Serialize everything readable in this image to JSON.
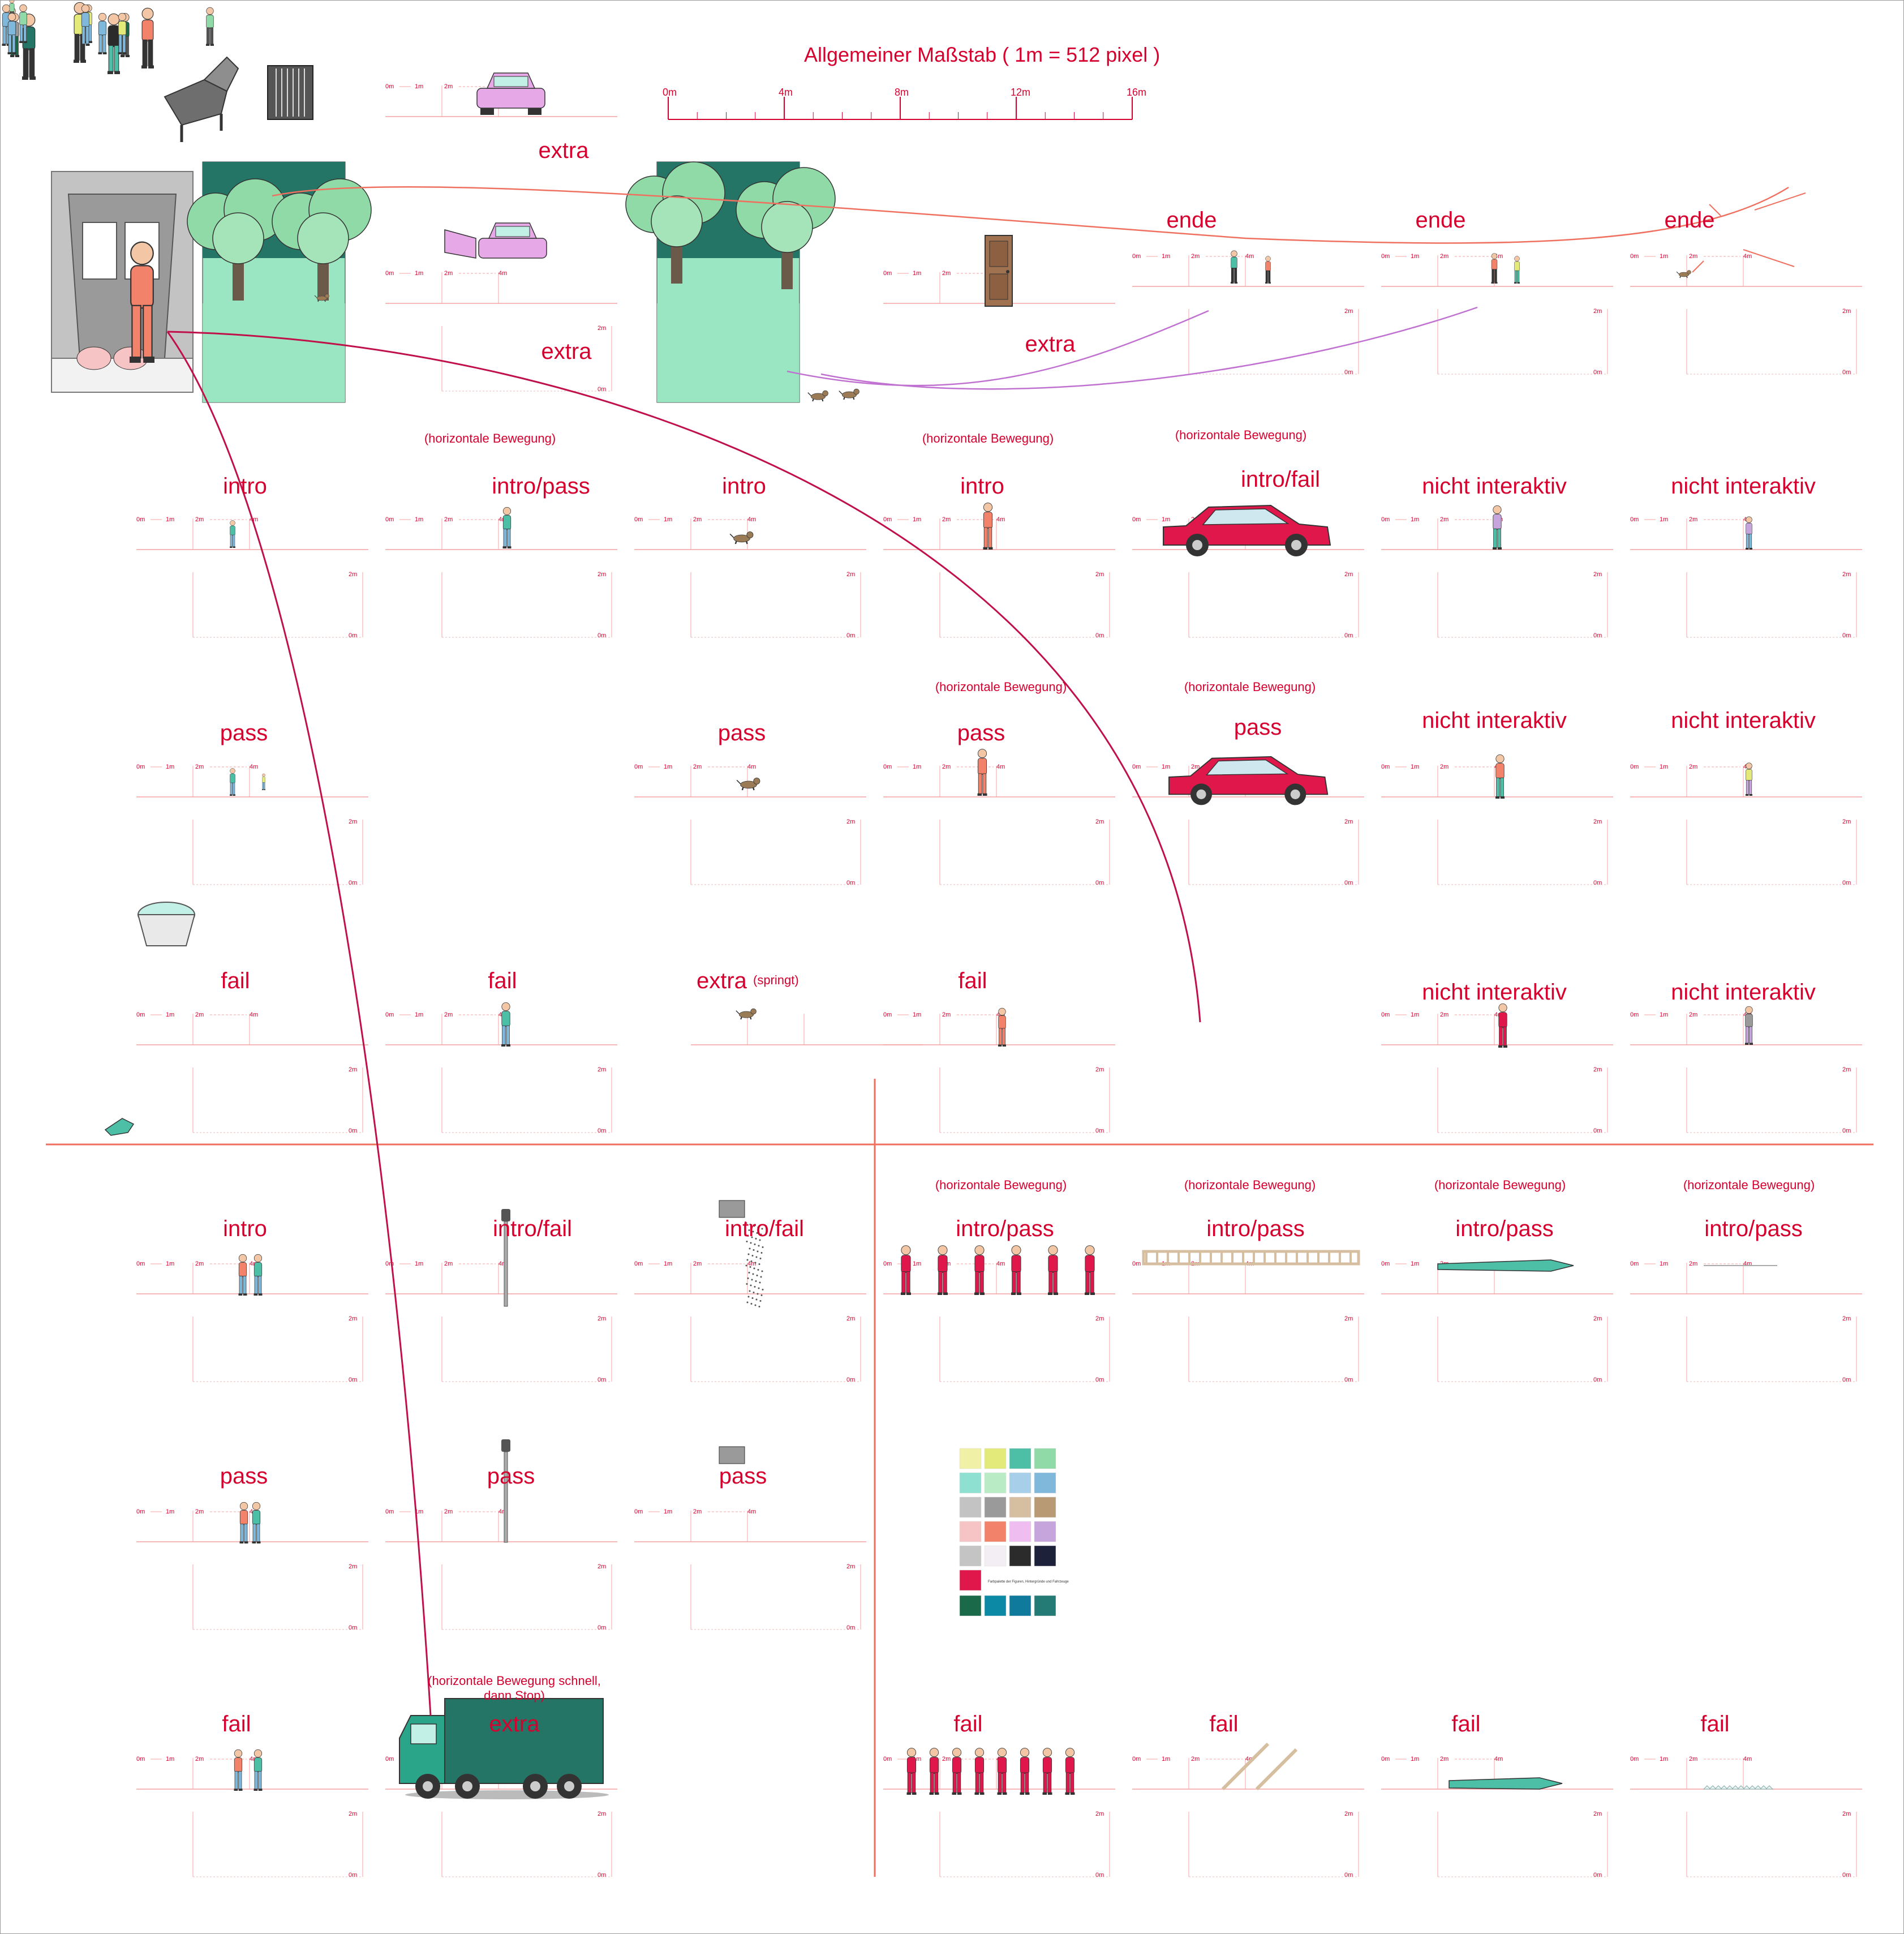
{
  "header": {
    "title": "Allgemeiner Maßstab ( 1m = 512 pixel )",
    "scale_ticks": [
      "0m",
      "4m",
      "8m",
      "12m",
      "16m"
    ]
  },
  "ruler": {
    "h_ticks": [
      "0m",
      "1m",
      "2m",
      "4m"
    ],
    "v_ticks": [
      "2m",
      "0m"
    ]
  },
  "labels": {
    "intro": "intro",
    "intro_pass": "intro/pass",
    "intro_fail": "intro/fail",
    "pass": "pass",
    "fail": "fail",
    "extra": "extra",
    "springt": "(springt)",
    "ende": "ende",
    "nicht_interaktiv": "nicht interaktiv",
    "horizontal": "(horizontale Bewegung)",
    "horizontal_fast_1": "(horizontale Bewegung schnell,",
    "horizontal_fast_2": "dann Stop)"
  },
  "colors": {
    "accent": "#d6002e",
    "guide": "#f4a0a0",
    "teal": "#257567",
    "mint": "#9be6c2",
    "car_red": "#e0174a",
    "car_pink": "#e6a8e6",
    "grid_line": "#f07060"
  },
  "palette": {
    "rows": [
      [
        "#f0f1a6",
        "#e4ea7a",
        "#4dbfa6",
        "#8fdaa7"
      ],
      [
        "#8ee1d1",
        "#b9ecc4",
        "#a7cfe9",
        "#7fb8db"
      ],
      [
        "#c3c3c3",
        "#9a9a9a",
        "#d6bfa0",
        "#b89b75"
      ],
      [
        "#f6c4c4",
        "#f2826a",
        "#f0bdf0",
        "#c6a5dc"
      ],
      [
        "#c4c4c4",
        "#f3eef3",
        "#2b2b2b",
        "#1d2139"
      ],
      [
        "#e0174a"
      ],
      [
        "#1a6a4a",
        "#0c8aa5",
        "#0f7a9c",
        "#247a74"
      ]
    ],
    "caption": "Farbpalette der Figuren, Hintergründe und Fahrzeuge"
  },
  "icons": [
    "piano-icon",
    "accordion-icon",
    "pink-car-icon",
    "elevator-icon",
    "forest-backdrop-icon",
    "picnic-scene-icon",
    "door-icon",
    "dog-icon",
    "child-icon",
    "elderly-woman-icon",
    "red-car-icon",
    "girl-icon",
    "basket-icon",
    "crocodile-icon",
    "traffic-light-icon",
    "marching-band-icon",
    "ladder-workers-icon",
    "truck-icon",
    "couple-icon"
  ]
}
